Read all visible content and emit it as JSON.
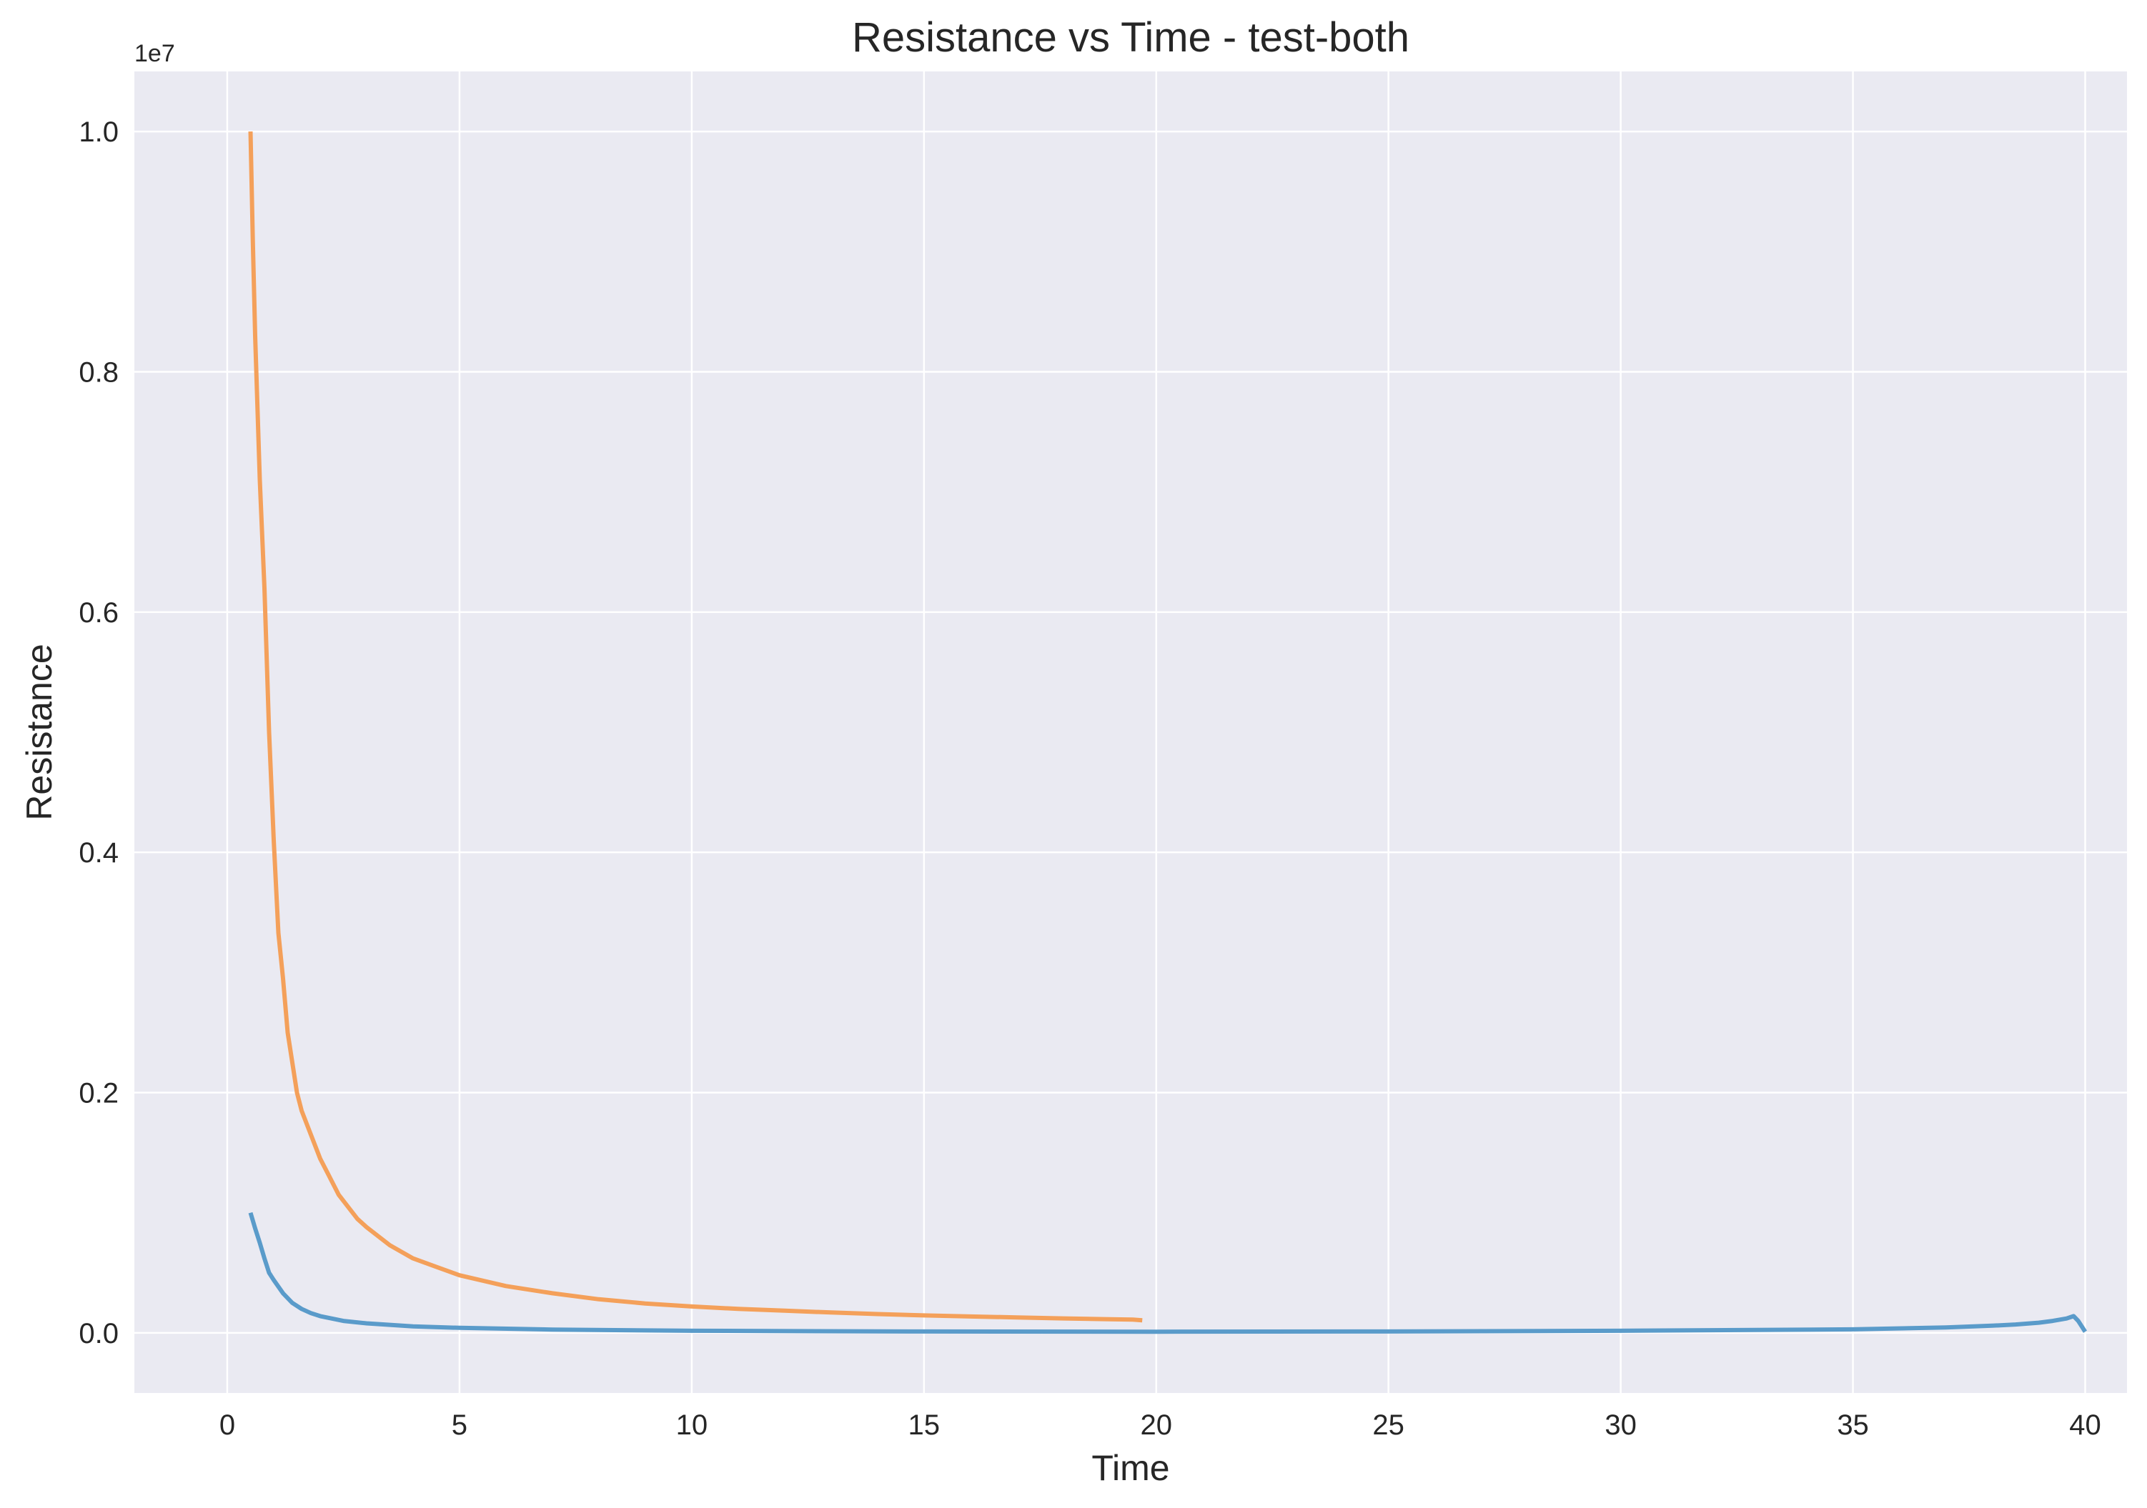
{
  "chart_data": {
    "type": "line",
    "title": "Resistance vs Time - test-both",
    "xlabel": "Time",
    "ylabel": "Resistance",
    "y_offset_label": "1e7",
    "xlim": [
      -2,
      40.9
    ],
    "ylim": [
      -500000,
      10500000
    ],
    "x_ticks": [
      0,
      5,
      10,
      15,
      20,
      25,
      30,
      35,
      40
    ],
    "x_tick_labels": [
      "0",
      "5",
      "10",
      "15",
      "20",
      "25",
      "30",
      "35",
      "40"
    ],
    "y_ticks": [
      0,
      2000000,
      4000000,
      6000000,
      8000000,
      10000000
    ],
    "y_tick_labels": [
      "0.0",
      "0.2",
      "0.4",
      "0.6",
      "0.8",
      "1.0"
    ],
    "grid": true,
    "background_color": "#eaeaf2",
    "series": [
      {
        "color": "#f4a05a",
        "x": [
          0.5,
          0.55,
          0.6,
          0.7,
          0.8,
          0.9,
          1.0,
          1.1,
          1.2,
          1.3,
          1.4,
          1.5,
          1.6,
          1.8,
          2.0,
          2.2,
          2.4,
          2.6,
          2.8,
          3.0,
          3.5,
          4.0,
          4.5,
          5.0,
          6.0,
          7.0,
          8.0,
          9.0,
          10.0,
          11.0,
          12.0,
          13.0,
          14.0,
          15.0,
          16.0,
          17.0,
          18.0,
          19.0,
          19.5,
          19.7
        ],
        "y": [
          10000000,
          9100000,
          8300000,
          7100000,
          6200000,
          5000000,
          4100000,
          3330000,
          2950000,
          2500000,
          2250000,
          2000000,
          1850000,
          1650000,
          1450000,
          1300000,
          1150000,
          1050000,
          950000,
          880000,
          730000,
          620000,
          550000,
          480000,
          390000,
          330000,
          280000,
          245000,
          220000,
          200000,
          185000,
          170000,
          157000,
          146000,
          137000,
          129000,
          121000,
          114000,
          111000,
          105000
        ]
      },
      {
        "color": "#5a9bca",
        "x": [
          0.5,
          0.6,
          0.7,
          0.8,
          0.9,
          1.0,
          1.2,
          1.4,
          1.6,
          1.8,
          2.0,
          2.5,
          3.0,
          4.0,
          5.0,
          7.0,
          10.0,
          15.0,
          20.0,
          25.0,
          30.0,
          35.0,
          37.0,
          38.0,
          38.5,
          39.0,
          39.3,
          39.6,
          39.75,
          39.85,
          39.95,
          40.0
        ],
        "y": [
          1000000,
          870000,
          750000,
          620000,
          500000,
          440000,
          330000,
          250000,
          200000,
          165000,
          140000,
          100000,
          80000,
          55000,
          42000,
          28000,
          18000,
          12000,
          10000,
          12000,
          18000,
          30000,
          45000,
          60000,
          70000,
          85000,
          100000,
          120000,
          140000,
          100000,
          40000,
          10000
        ]
      }
    ]
  }
}
